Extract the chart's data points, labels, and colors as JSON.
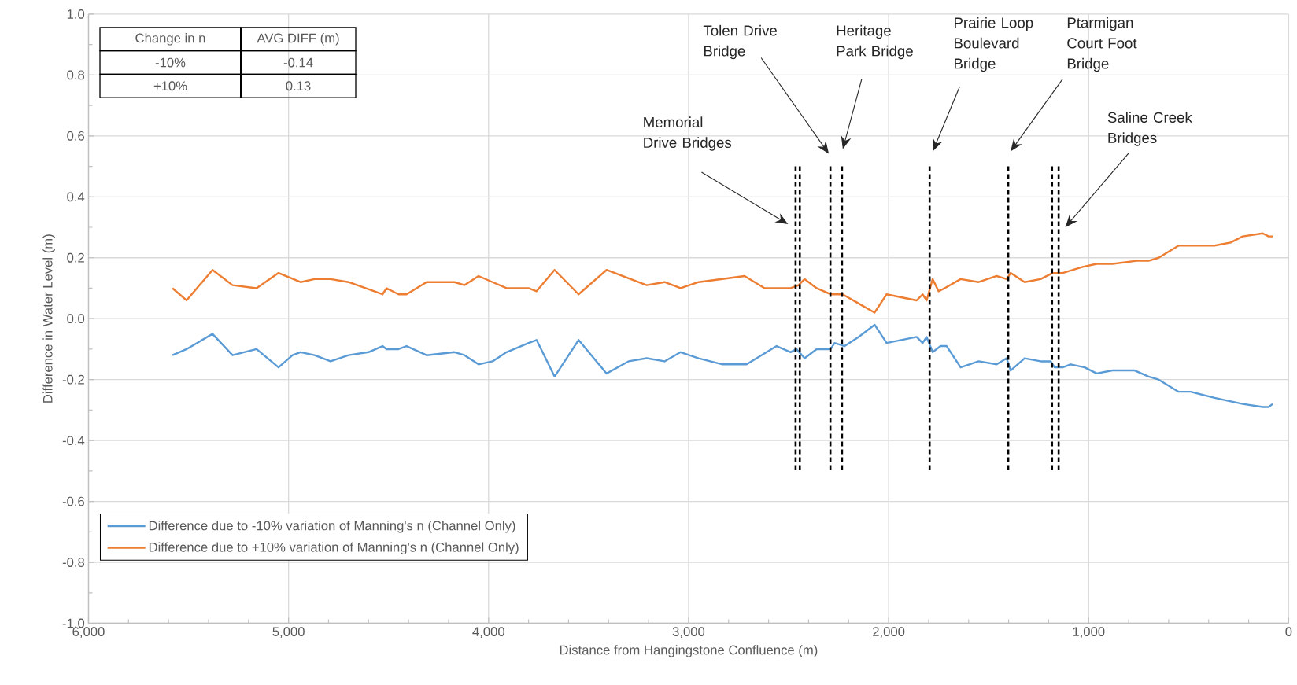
{
  "chart_data": {
    "type": "line",
    "xlabel": "Distance from Hangingstone Confluence (m)",
    "ylabel": "Difference in Water Level (m)",
    "xlim": [
      6000,
      0
    ],
    "ylim": [
      -1,
      1
    ],
    "xticks": [
      {
        "value": 6000,
        "label": "6,000"
      },
      {
        "value": 5000,
        "label": "5,000"
      },
      {
        "value": 4000,
        "label": "4,000"
      },
      {
        "value": 3000,
        "label": "3,000"
      },
      {
        "value": 2000,
        "label": "2,000"
      },
      {
        "value": 1000,
        "label": "1,000"
      },
      0
    ],
    "yticks": [
      {
        "value": -1,
        "label": "-1.0"
      },
      {
        "value": -0.8,
        "label": "-0.8"
      },
      {
        "value": -0.6,
        "label": "-0.6"
      },
      {
        "value": -0.4,
        "label": "-0.4"
      },
      {
        "value": -0.2,
        "label": "-0.2"
      },
      {
        "value": 0,
        "label": "0.0"
      },
      {
        "value": 0.2,
        "label": "0.2"
      },
      {
        "value": 0.4,
        "label": "0.4"
      },
      {
        "value": 0.6,
        "label": "0.6"
      },
      {
        "value": 0.8,
        "label": "0.8"
      },
      {
        "value": 1,
        "label": "1.0"
      }
    ],
    "grid": true,
    "legend": "bottom left",
    "series": [
      {
        "name": "Difference due to -10% variation of Manning's n (Channel Only)",
        "color": "#5b9bd5",
        "x": [
          5580,
          5510,
          5380,
          5280,
          5160,
          5050,
          4980,
          4940,
          4870,
          4790,
          4700,
          4600,
          4530,
          4510,
          4450,
          4410,
          4310,
          4170,
          4120,
          4050,
          3980,
          3910,
          3800,
          3760,
          3670,
          3550,
          3410,
          3300,
          3210,
          3120,
          3040,
          2950,
          2830,
          2710,
          2560,
          2490,
          2460,
          2420,
          2360,
          2290,
          2270,
          2220,
          2150,
          2070,
          2010,
          1860,
          1830,
          1810,
          1780,
          1740,
          1710,
          1640,
          1550,
          1460,
          1410,
          1390,
          1320,
          1240,
          1190,
          1170,
          1130,
          1090,
          1020,
          960,
          880,
          770,
          700,
          650,
          550,
          490,
          370,
          230,
          130,
          100,
          80
        ],
        "values": [
          -0.12,
          -0.1,
          -0.05,
          -0.12,
          -0.1,
          -0.16,
          -0.12,
          -0.11,
          -0.12,
          -0.14,
          -0.12,
          -0.11,
          -0.09,
          -0.1,
          -0.1,
          -0.09,
          -0.12,
          -0.11,
          -0.12,
          -0.15,
          -0.14,
          -0.11,
          -0.08,
          -0.07,
          -0.19,
          -0.07,
          -0.18,
          -0.14,
          -0.13,
          -0.14,
          -0.11,
          -0.13,
          -0.15,
          -0.15,
          -0.09,
          -0.11,
          -0.1,
          -0.13,
          -0.1,
          -0.1,
          -0.08,
          -0.09,
          -0.06,
          -0.02,
          -0.08,
          -0.06,
          -0.08,
          -0.06,
          -0.11,
          -0.09,
          -0.09,
          -0.16,
          -0.14,
          -0.15,
          -0.13,
          -0.17,
          -0.13,
          -0.14,
          -0.14,
          -0.16,
          -0.16,
          -0.15,
          -0.16,
          -0.18,
          -0.17,
          -0.17,
          -0.19,
          -0.2,
          -0.24,
          -0.24,
          -0.26,
          -0.28,
          -0.29,
          -0.29,
          -0.28
        ]
      },
      {
        "name": "Difference due to +10% variation of Manning's n (Channel Only)",
        "color": "#ed7d31",
        "x": [
          5580,
          5510,
          5380,
          5280,
          5160,
          5050,
          4940,
          4870,
          4790,
          4700,
          4530,
          4510,
          4450,
          4410,
          4310,
          4170,
          4120,
          4050,
          3980,
          3910,
          3800,
          3760,
          3670,
          3550,
          3410,
          3210,
          3120,
          3040,
          2950,
          2720,
          2620,
          2490,
          2450,
          2420,
          2360,
          2290,
          2230,
          2150,
          2070,
          2010,
          1860,
          1830,
          1810,
          1780,
          1750,
          1720,
          1640,
          1550,
          1460,
          1410,
          1390,
          1320,
          1240,
          1180,
          1130,
          1030,
          960,
          880,
          760,
          700,
          650,
          550,
          370,
          290,
          230,
          130,
          100,
          80
        ],
        "values": [
          0.1,
          0.06,
          0.16,
          0.11,
          0.1,
          0.15,
          0.12,
          0.13,
          0.13,
          0.12,
          0.08,
          0.1,
          0.08,
          0.08,
          0.12,
          0.12,
          0.11,
          0.14,
          0.12,
          0.1,
          0.1,
          0.09,
          0.16,
          0.08,
          0.16,
          0.11,
          0.12,
          0.1,
          0.12,
          0.14,
          0.1,
          0.1,
          0.11,
          0.13,
          0.1,
          0.08,
          0.08,
          0.05,
          0.02,
          0.08,
          0.06,
          0.08,
          0.06,
          0.13,
          0.09,
          0.1,
          0.13,
          0.12,
          0.14,
          0.13,
          0.15,
          0.12,
          0.13,
          0.15,
          0.15,
          0.17,
          0.18,
          0.18,
          0.19,
          0.19,
          0.2,
          0.24,
          0.24,
          0.25,
          0.27,
          0.28,
          0.27,
          0.27
        ]
      },
      {
        "type": "line",
        "color": "#000000",
        "line_style": "dashed",
        "x": [
          2465,
          2465
        ],
        "values": [
          0.5,
          -0.5
        ]
      },
      {
        "type": "line",
        "color": "#000000",
        "line_style": "dashed",
        "x": [
          2444,
          2444
        ],
        "values": [
          0.5,
          -0.5
        ]
      },
      {
        "type": "line",
        "color": "#000000",
        "line_style": "dashed",
        "x": [
          2291,
          2291
        ],
        "values": [
          0.5,
          -0.5
        ]
      },
      {
        "type": "line",
        "color": "#000000",
        "line_style": "dashed",
        "x": [
          2233,
          2233
        ],
        "values": [
          0.5,
          -0.5
        ]
      },
      {
        "type": "line",
        "color": "#000000",
        "line_style": "dashed",
        "x": [
          1795,
          1795
        ],
        "values": [
          0.5,
          -0.5
        ]
      },
      {
        "type": "line",
        "color": "#000000",
        "line_style": "dashed",
        "x": [
          1402,
          1402
        ],
        "values": [
          0.5,
          -0.5
        ]
      },
      {
        "type": "line",
        "color": "#000000",
        "line_style": "dashed",
        "x": [
          1183,
          1183
        ],
        "values": [
          0.5,
          -0.5
        ]
      },
      {
        "type": "line",
        "color": "#000000",
        "line_style": "dashed",
        "x": [
          1150,
          1150
        ],
        "values": [
          0.5,
          -0.5
        ]
      }
    ],
    "annotations": [
      "Change in n",
      "AVG DIFF (m)",
      "-10%",
      "-0.14",
      "+10%",
      "0.13",
      "Memorial Drive Bridges",
      "Tolen Drive Bridge",
      "Heritage Park Bridge",
      "Prairie Loop Boulevard Bridge",
      "Ptarmigan Court Foot Bridge",
      "Saline Creek Bridges"
    ]
  }
}
